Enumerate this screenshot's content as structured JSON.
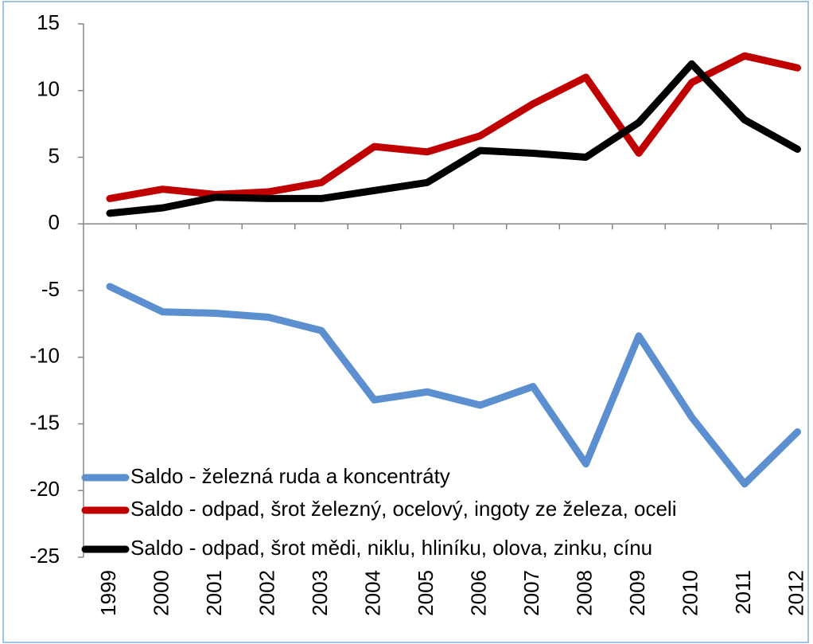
{
  "chart_data": {
    "type": "line",
    "categories": [
      "1999",
      "2000",
      "2001",
      "2002",
      "2003",
      "2004",
      "2005",
      "2006",
      "2007",
      "2008",
      "2009",
      "2010",
      "2011",
      "2012"
    ],
    "series": [
      {
        "name": "Saldo - železná ruda a koncentráty",
        "color": "#5b8fd0",
        "values": [
          -4.7,
          -6.6,
          -6.7,
          -7.0,
          -8.0,
          -13.2,
          -12.6,
          -13.6,
          -12.2,
          -18.0,
          -8.4,
          -14.5,
          -19.5,
          -15.6
        ]
      },
      {
        "name": "Saldo - odpad, šrot železný, ocelový, ingoty ze železa, oceli",
        "color": "#c00000",
        "values": [
          1.9,
          2.6,
          2.2,
          2.4,
          3.1,
          5.8,
          5.4,
          6.6,
          9.0,
          11.0,
          5.3,
          10.6,
          12.6,
          11.7
        ]
      },
      {
        "name": "Saldo - odpad, šrot mědi, niklu, hliníku, olova, zinku, cínu",
        "color": "#000000",
        "values": [
          0.8,
          1.2,
          2.0,
          1.9,
          1.9,
          2.5,
          3.1,
          5.5,
          5.3,
          5.0,
          7.6,
          12.0,
          7.8,
          5.6
        ]
      }
    ],
    "ylim": [
      -25,
      15
    ],
    "yticks": [
      -25,
      -20,
      -15,
      -10,
      -5,
      0,
      5,
      10,
      15
    ]
  }
}
